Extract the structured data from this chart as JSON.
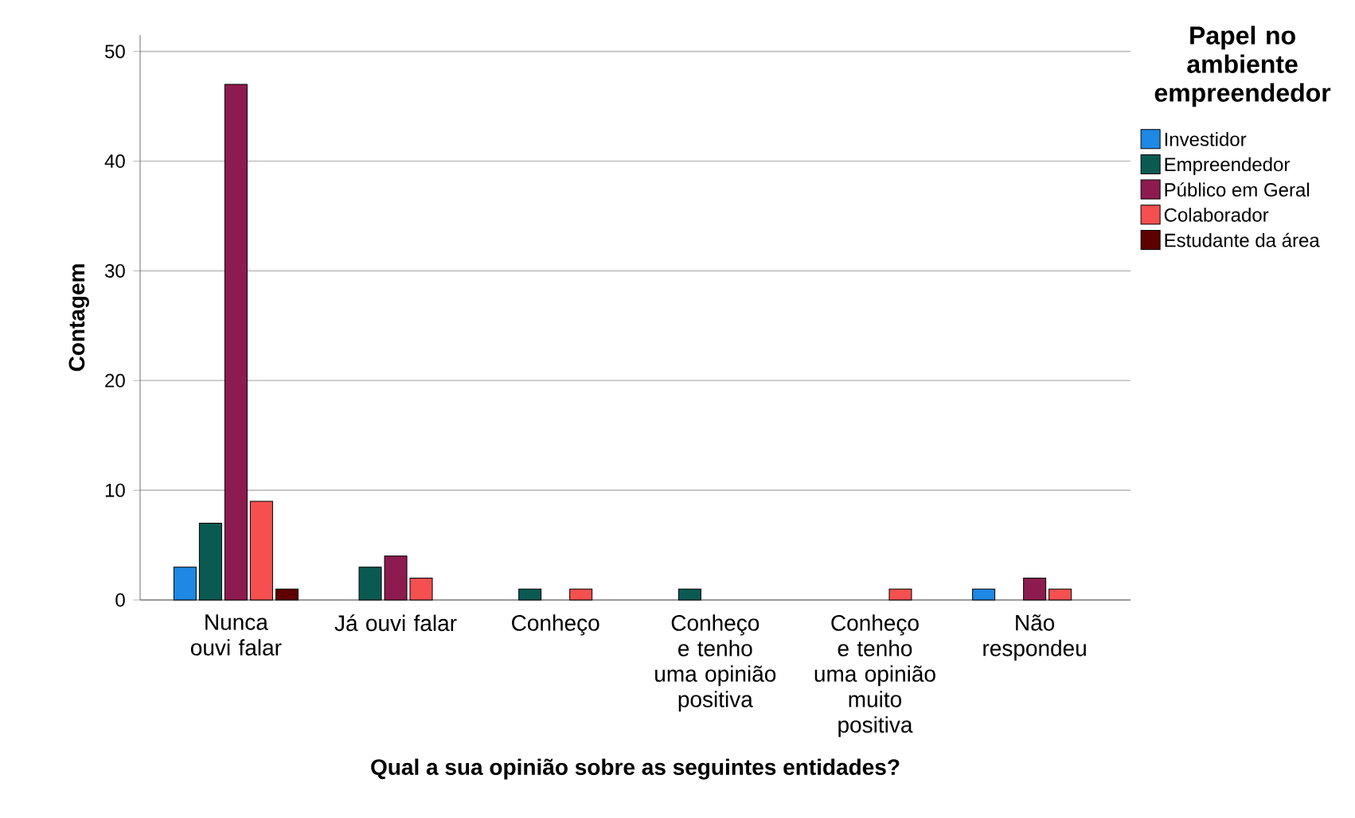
{
  "chart_data": {
    "type": "bar",
    "xlabel": "Qual a sua opinião sobre as seguintes entidades?",
    "ylabel": "Contagem",
    "legend_title": "Papel no ambiente empreendedor",
    "categories": [
      "Nunca ouvi falar",
      "Já ouvi falar",
      "Conheço",
      "Conheço e tenho uma opinião positiva",
      "Conheço e tenho uma opinião muito positiva",
      "Não respondeu"
    ],
    "series": [
      {
        "name": "Investidor",
        "color": "#1e88e5",
        "values": [
          3,
          null,
          null,
          null,
          null,
          1
        ]
      },
      {
        "name": "Empreendedor",
        "color": "#0b5a52",
        "values": [
          7,
          3,
          1,
          1,
          null,
          null
        ]
      },
      {
        "name": "Público em Geral",
        "color": "#8e1b4f",
        "values": [
          47,
          4,
          null,
          null,
          null,
          2
        ]
      },
      {
        "name": "Colaborador",
        "color": "#f5504f",
        "values": [
          9,
          2,
          1,
          null,
          1,
          1
        ]
      },
      {
        "name": "Estudante da área",
        "color": "#5e0000",
        "values": [
          1,
          null,
          null,
          null,
          null,
          null
        ]
      }
    ],
    "ylim": [
      0,
      51.5
    ],
    "yticks": [
      0,
      10,
      20,
      30,
      40,
      50
    ],
    "grid": "y",
    "legend": "right"
  }
}
